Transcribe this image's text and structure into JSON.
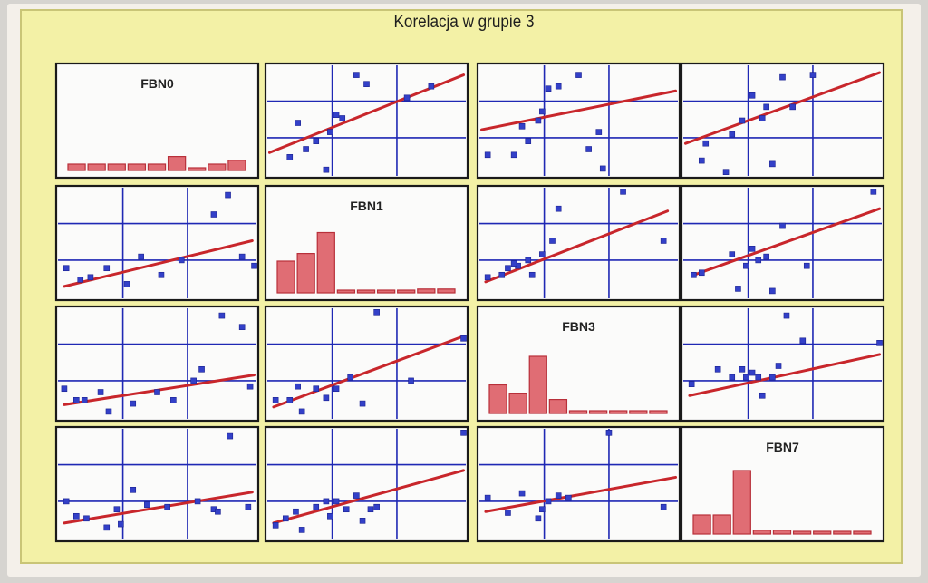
{
  "chart_data": {
    "type": "scatter",
    "title": "Korelacja w grupie 3",
    "variables": [
      "FBN0",
      "FBN1",
      "FBN3",
      "FBN7"
    ],
    "histograms": {
      "FBN0": [
        0.1,
        0.1,
        0.1,
        0.1,
        0.1,
        0.22,
        0.04,
        0.1,
        0.16
      ],
      "FBN1": [
        0.5,
        0.62,
        0.95,
        0.04,
        0.04,
        0.04,
        0.04,
        0.06,
        0.06
      ],
      "FBN3": [
        0.45,
        0.32,
        0.9,
        0.22,
        0.02,
        0.02,
        0.04,
        0.04,
        0.04
      ],
      "FBN7": [
        0.3,
        0.3,
        1.0,
        0.06,
        0.06,
        0.02,
        0.02,
        0.02,
        0.04
      ]
    },
    "scatter": {
      "FBN0": {
        "FBN1": {
          "points": [
            [
              0.12,
              0.82
            ],
            [
              0.16,
              0.52
            ],
            [
              0.2,
              0.75
            ],
            [
              0.25,
              0.68
            ],
            [
              0.3,
              0.93
            ],
            [
              0.32,
              0.6
            ],
            [
              0.35,
              0.45
            ],
            [
              0.38,
              0.48
            ],
            [
              0.45,
              0.1
            ],
            [
              0.5,
              0.18
            ],
            [
              0.7,
              0.3
            ],
            [
              0.82,
              0.2
            ]
          ],
          "line": [
            [
              0.02,
              0.78
            ],
            [
              0.98,
              0.1
            ]
          ]
        },
        "FBN3": {
          "points": [
            [
              0.05,
              0.8
            ],
            [
              0.18,
              0.8
            ],
            [
              0.22,
              0.55
            ],
            [
              0.25,
              0.68
            ],
            [
              0.3,
              0.5
            ],
            [
              0.32,
              0.42
            ],
            [
              0.35,
              0.22
            ],
            [
              0.4,
              0.2
            ],
            [
              0.5,
              0.1
            ],
            [
              0.55,
              0.75
            ],
            [
              0.6,
              0.6
            ],
            [
              0.62,
              0.92
            ]
          ],
          "line": [
            [
              0.02,
              0.58
            ],
            [
              0.98,
              0.24
            ]
          ]
        },
        "FBN7": {
          "points": [
            [
              0.1,
              0.85
            ],
            [
              0.12,
              0.7
            ],
            [
              0.22,
              0.95
            ],
            [
              0.25,
              0.62
            ],
            [
              0.3,
              0.5
            ],
            [
              0.35,
              0.28
            ],
            [
              0.4,
              0.48
            ],
            [
              0.42,
              0.38
            ],
            [
              0.45,
              0.88
            ],
            [
              0.5,
              0.12
            ],
            [
              0.55,
              0.38
            ],
            [
              0.65,
              0.1
            ]
          ],
          "line": [
            [
              0.02,
              0.7
            ],
            [
              0.98,
              0.08
            ]
          ]
        }
      },
      "FBN1": {
        "FBN0": {
          "points": [
            [
              0.05,
              0.72
            ],
            [
              0.12,
              0.82
            ],
            [
              0.17,
              0.8
            ],
            [
              0.25,
              0.72
            ],
            [
              0.35,
              0.86
            ],
            [
              0.42,
              0.62
            ],
            [
              0.52,
              0.78
            ],
            [
              0.62,
              0.65
            ],
            [
              0.78,
              0.25
            ],
            [
              0.85,
              0.08
            ],
            [
              0.92,
              0.62
            ],
            [
              0.98,
              0.7
            ]
          ],
          "line": [
            [
              0.04,
              0.88
            ],
            [
              0.97,
              0.48
            ]
          ]
        },
        "FBN3": {
          "points": [
            [
              0.05,
              0.8
            ],
            [
              0.12,
              0.78
            ],
            [
              0.15,
              0.72
            ],
            [
              0.2,
              0.7
            ],
            [
              0.25,
              0.65
            ],
            [
              0.32,
              0.6
            ],
            [
              0.37,
              0.48
            ],
            [
              0.4,
              0.2
            ],
            [
              0.72,
              0.05
            ],
            [
              0.92,
              0.48
            ],
            [
              0.27,
              0.78
            ],
            [
              0.18,
              0.68
            ]
          ],
          "line": [
            [
              0.04,
              0.84
            ],
            [
              0.94,
              0.22
            ]
          ]
        },
        "FBN7": {
          "points": [
            [
              0.06,
              0.78
            ],
            [
              0.1,
              0.76
            ],
            [
              0.25,
              0.6
            ],
            [
              0.28,
              0.9
            ],
            [
              0.32,
              0.7
            ],
            [
              0.35,
              0.55
            ],
            [
              0.38,
              0.65
            ],
            [
              0.42,
              0.62
            ],
            [
              0.45,
              0.92
            ],
            [
              0.5,
              0.35
            ],
            [
              0.62,
              0.7
            ],
            [
              0.95,
              0.05
            ]
          ],
          "line": [
            [
              0.06,
              0.78
            ],
            [
              0.98,
              0.2
            ]
          ]
        }
      },
      "FBN3": {
        "FBN0": {
          "points": [
            [
              0.04,
              0.72
            ],
            [
              0.1,
              0.82
            ],
            [
              0.14,
              0.82
            ],
            [
              0.22,
              0.75
            ],
            [
              0.26,
              0.92
            ],
            [
              0.38,
              0.85
            ],
            [
              0.5,
              0.75
            ],
            [
              0.58,
              0.82
            ],
            [
              0.68,
              0.65
            ],
            [
              0.72,
              0.55
            ],
            [
              0.82,
              0.08
            ],
            [
              0.92,
              0.18
            ],
            [
              0.96,
              0.7
            ]
          ],
          "line": [
            [
              0.04,
              0.86
            ],
            [
              0.98,
              0.6
            ]
          ]
        },
        "FBN1": {
          "points": [
            [
              0.05,
              0.82
            ],
            [
              0.12,
              0.82
            ],
            [
              0.16,
              0.7
            ],
            [
              0.18,
              0.92
            ],
            [
              0.25,
              0.72
            ],
            [
              0.3,
              0.8
            ],
            [
              0.35,
              0.72
            ],
            [
              0.42,
              0.62
            ],
            [
              0.48,
              0.85
            ],
            [
              0.55,
              0.05
            ],
            [
              0.72,
              0.65
            ],
            [
              0.98,
              0.28
            ]
          ],
          "line": [
            [
              0.04,
              0.88
            ],
            [
              0.98,
              0.26
            ]
          ]
        },
        "FBN7": {
          "points": [
            [
              0.05,
              0.68
            ],
            [
              0.18,
              0.55
            ],
            [
              0.25,
              0.62
            ],
            [
              0.3,
              0.55
            ],
            [
              0.32,
              0.62
            ],
            [
              0.35,
              0.58
            ],
            [
              0.38,
              0.62
            ],
            [
              0.4,
              0.78
            ],
            [
              0.45,
              0.62
            ],
            [
              0.48,
              0.52
            ],
            [
              0.52,
              0.08
            ],
            [
              0.6,
              0.3
            ],
            [
              0.98,
              0.32
            ]
          ],
          "line": [
            [
              0.04,
              0.78
            ],
            [
              0.98,
              0.42
            ]
          ]
        }
      },
      "FBN7": {
        "FBN0": {
          "points": [
            [
              0.05,
              0.65
            ],
            [
              0.1,
              0.78
            ],
            [
              0.15,
              0.8
            ],
            [
              0.25,
              0.88
            ],
            [
              0.3,
              0.72
            ],
            [
              0.32,
              0.85
            ],
            [
              0.38,
              0.55
            ],
            [
              0.45,
              0.68
            ],
            [
              0.55,
              0.7
            ],
            [
              0.7,
              0.65
            ],
            [
              0.78,
              0.72
            ],
            [
              0.8,
              0.74
            ],
            [
              0.86,
              0.08
            ],
            [
              0.95,
              0.7
            ]
          ],
          "line": [
            [
              0.04,
              0.84
            ],
            [
              0.97,
              0.57
            ]
          ]
        },
        "FBN1": {
          "points": [
            [
              0.05,
              0.86
            ],
            [
              0.1,
              0.8
            ],
            [
              0.15,
              0.74
            ],
            [
              0.18,
              0.9
            ],
            [
              0.25,
              0.7
            ],
            [
              0.3,
              0.65
            ],
            [
              0.32,
              0.78
            ],
            [
              0.35,
              0.65
            ],
            [
              0.4,
              0.72
            ],
            [
              0.45,
              0.6
            ],
            [
              0.48,
              0.82
            ],
            [
              0.52,
              0.72
            ],
            [
              0.55,
              0.7
            ],
            [
              0.98,
              0.05
            ]
          ],
          "line": [
            [
              0.04,
              0.84
            ],
            [
              0.98,
              0.38
            ]
          ]
        },
        "FBN3": {
          "points": [
            [
              0.05,
              0.62
            ],
            [
              0.15,
              0.75
            ],
            [
              0.22,
              0.58
            ],
            [
              0.3,
              0.8
            ],
            [
              0.32,
              0.72
            ],
            [
              0.35,
              0.65
            ],
            [
              0.4,
              0.6
            ],
            [
              0.45,
              0.62
            ],
            [
              0.65,
              0.05
            ],
            [
              0.92,
              0.7
            ]
          ],
          "line": [
            [
              0.04,
              0.74
            ],
            [
              0.98,
              0.44
            ]
          ]
        }
      }
    }
  }
}
